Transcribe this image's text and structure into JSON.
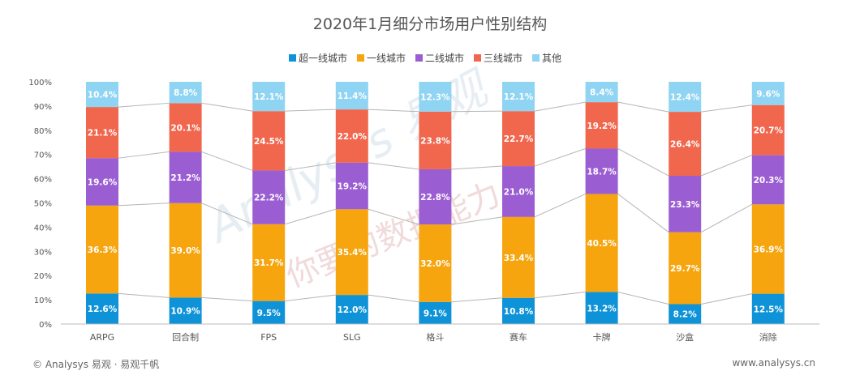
{
  "chart_data": {
    "type": "bar",
    "stacked": true,
    "title": "2020年1月细分市场用户性别结构",
    "categories": [
      "ARPG",
      "回合制",
      "FPS",
      "SLG",
      "格斗",
      "赛车",
      "卡牌",
      "沙盒",
      "消除"
    ],
    "ylim": [
      0,
      100
    ],
    "yticks": [
      "0%",
      "10%",
      "20%",
      "30%",
      "40%",
      "50%",
      "60%",
      "70%",
      "80%",
      "90%",
      "100%"
    ],
    "legend_position": "top-center",
    "series": [
      {
        "name": "超一线城市",
        "color": "#0f93d8",
        "values": [
          12.6,
          10.9,
          9.5,
          12.0,
          9.1,
          10.8,
          13.2,
          8.2,
          12.5
        ]
      },
      {
        "name": "一线城市",
        "color": "#f6a50f",
        "values": [
          36.3,
          39.0,
          31.7,
          35.4,
          32.0,
          33.4,
          40.5,
          29.7,
          36.9
        ]
      },
      {
        "name": "二线城市",
        "color": "#9b5ed2",
        "values": [
          19.6,
          21.2,
          22.2,
          19.2,
          22.8,
          21.0,
          18.7,
          23.3,
          20.3
        ]
      },
      {
        "name": "三线城市",
        "color": "#f1674e",
        "values": [
          21.1,
          20.1,
          24.5,
          22.0,
          23.8,
          22.7,
          19.2,
          26.4,
          20.7
        ]
      },
      {
        "name": "其他",
        "color": "#8fd4f2",
        "values": [
          10.4,
          8.8,
          12.1,
          11.4,
          12.3,
          12.1,
          8.4,
          12.4,
          9.6
        ]
      }
    ]
  },
  "footer": {
    "left": "© Analysys 易观 · 易观千帆",
    "right": "www.analysys.cn"
  },
  "watermark": {
    "brand": "Analysys 易观",
    "slogan": "你要的数据能力"
  }
}
